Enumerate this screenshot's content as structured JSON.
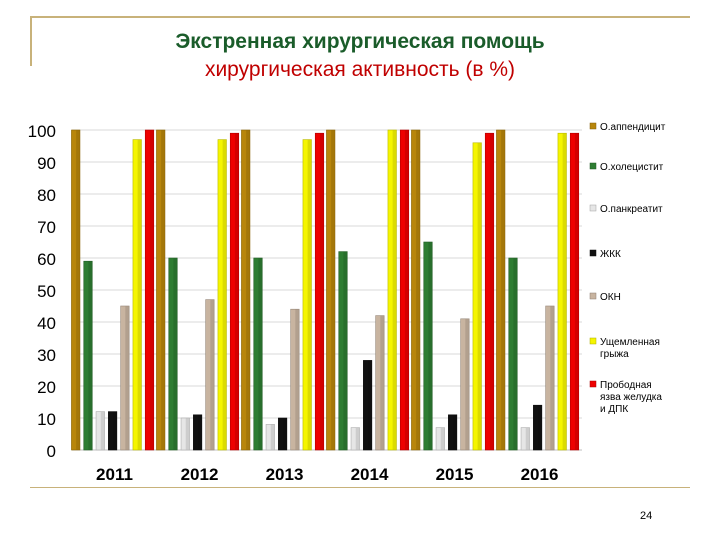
{
  "slide": {
    "title": "Экстренная хирургическая помощь",
    "subtitle": "хирургическая активность (в %)",
    "page_number": "24"
  },
  "colors": {
    "title": "#1a5c2a",
    "subtitle": "#c00000",
    "frame": "#c8b27a"
  },
  "chart_data": {
    "type": "bar",
    "categories": [
      "2011",
      "2012",
      "2013",
      "2014",
      "2015",
      "2016"
    ],
    "ylim": [
      0,
      100
    ],
    "yticks": [
      0,
      10,
      20,
      30,
      40,
      50,
      60,
      70,
      80,
      90,
      100
    ],
    "grid": true,
    "legend_position": "right",
    "series": [
      {
        "name": "О.аппендицит",
        "color": "#b8860b",
        "values": [
          100,
          100,
          100,
          100,
          100,
          100
        ]
      },
      {
        "name": "О.холецистит",
        "color": "#2e7d32",
        "values": [
          59,
          60,
          60,
          62,
          65,
          60
        ]
      },
      {
        "name": "О.панкреатит",
        "color": "#e6e6e6",
        "values": [
          12,
          10,
          8,
          7,
          7,
          7
        ]
      },
      {
        "name": "ЖКК",
        "color": "#111111",
        "values": [
          12,
          11,
          10,
          28,
          11,
          14
        ]
      },
      {
        "name": "ОКН",
        "color": "#c8b4a0",
        "values": [
          45,
          47,
          44,
          42,
          41,
          45
        ]
      },
      {
        "name": "Ущемленная грыжа",
        "color": "#f5f500",
        "values": [
          97,
          97,
          97,
          100,
          96,
          99
        ]
      },
      {
        "name": "Прободная язва желудка и ДПК",
        "color": "#ee0000",
        "values": [
          100,
          99,
          99,
          100,
          99,
          99
        ]
      }
    ]
  }
}
